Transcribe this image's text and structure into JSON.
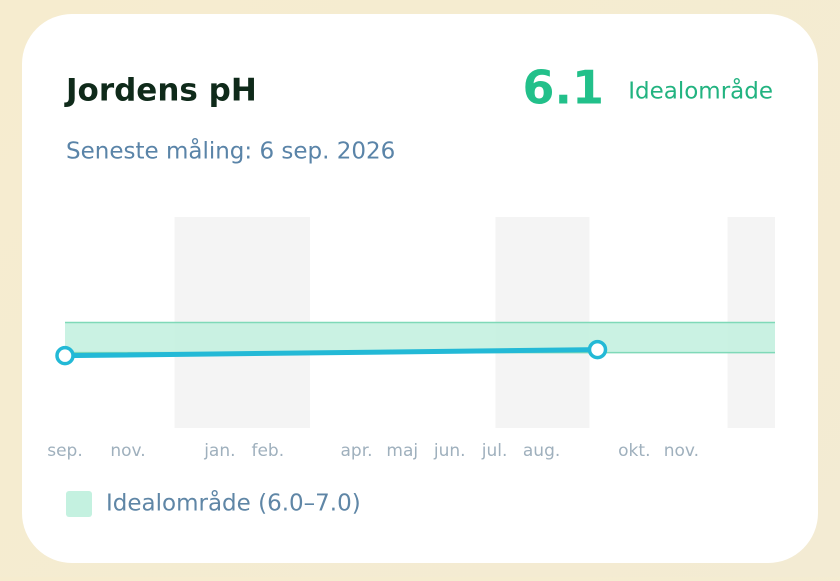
{
  "chart_data": {
    "type": "line",
    "title": "Jordens pH",
    "current_value": "6.1",
    "current_status": "Idealområde",
    "subtitle": "Seneste måling: 6 sep. 2026",
    "x": [
      0,
      12
    ],
    "series": [
      {
        "name": "Jordens pH",
        "color": "#23b9d6",
        "values": [
          5.9,
          6.1
        ]
      }
    ],
    "xlim": [
      0,
      16
    ],
    "xticks": [
      {
        "value": 0,
        "label": "sep."
      },
      {
        "value": 1.42,
        "label": "nov."
      },
      {
        "value": 3.49,
        "label": "jan."
      },
      {
        "value": 4.57,
        "label": "feb."
      },
      {
        "value": 6.57,
        "label": "apr."
      },
      {
        "value": 7.6,
        "label": "maj"
      },
      {
        "value": 8.67,
        "label": "jun."
      },
      {
        "value": 9.68,
        "label": "jul."
      },
      {
        "value": 10.74,
        "label": "aug."
      },
      {
        "value": 12.83,
        "label": "okt."
      },
      {
        "value": 13.89,
        "label": "nov."
      }
    ],
    "ylim": [
      3.5,
      10.5
    ],
    "shaded_ranges": [
      [
        2.47,
        5.52
      ],
      [
        9.7,
        11.82
      ],
      [
        14.93,
        16
      ]
    ],
    "ideal_range": {
      "name": "Idealområde (6.0–7.0)",
      "color": "#c4f1e0",
      "range": [
        6.0,
        7.0
      ]
    }
  }
}
